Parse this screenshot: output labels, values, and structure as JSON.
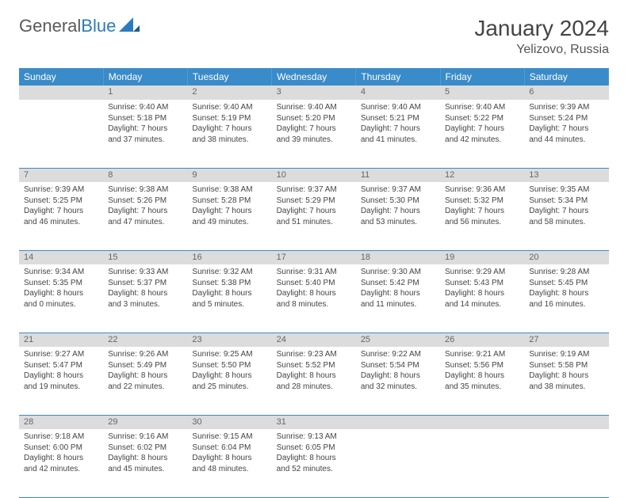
{
  "brand": {
    "part1": "General",
    "part2": "Blue"
  },
  "title": "January 2024",
  "location": "Yelizovo, Russia",
  "header_bg": "#3a8bc9",
  "daynum_bg": "#dcdcdc",
  "divider_color": "#3a8bc9",
  "text_color": "#444444",
  "day_headers": [
    "Sunday",
    "Monday",
    "Tuesday",
    "Wednesday",
    "Thursday",
    "Friday",
    "Saturday"
  ],
  "weeks": [
    {
      "nums": [
        "",
        "1",
        "2",
        "3",
        "4",
        "5",
        "6"
      ],
      "cells": [
        null,
        {
          "sunrise": "Sunrise: 9:40 AM",
          "sunset": "Sunset: 5:18 PM",
          "d1": "Daylight: 7 hours",
          "d2": "and 37 minutes."
        },
        {
          "sunrise": "Sunrise: 9:40 AM",
          "sunset": "Sunset: 5:19 PM",
          "d1": "Daylight: 7 hours",
          "d2": "and 38 minutes."
        },
        {
          "sunrise": "Sunrise: 9:40 AM",
          "sunset": "Sunset: 5:20 PM",
          "d1": "Daylight: 7 hours",
          "d2": "and 39 minutes."
        },
        {
          "sunrise": "Sunrise: 9:40 AM",
          "sunset": "Sunset: 5:21 PM",
          "d1": "Daylight: 7 hours",
          "d2": "and 41 minutes."
        },
        {
          "sunrise": "Sunrise: 9:40 AM",
          "sunset": "Sunset: 5:22 PM",
          "d1": "Daylight: 7 hours",
          "d2": "and 42 minutes."
        },
        {
          "sunrise": "Sunrise: 9:39 AM",
          "sunset": "Sunset: 5:24 PM",
          "d1": "Daylight: 7 hours",
          "d2": "and 44 minutes."
        }
      ]
    },
    {
      "nums": [
        "7",
        "8",
        "9",
        "10",
        "11",
        "12",
        "13"
      ],
      "cells": [
        {
          "sunrise": "Sunrise: 9:39 AM",
          "sunset": "Sunset: 5:25 PM",
          "d1": "Daylight: 7 hours",
          "d2": "and 46 minutes."
        },
        {
          "sunrise": "Sunrise: 9:38 AM",
          "sunset": "Sunset: 5:26 PM",
          "d1": "Daylight: 7 hours",
          "d2": "and 47 minutes."
        },
        {
          "sunrise": "Sunrise: 9:38 AM",
          "sunset": "Sunset: 5:28 PM",
          "d1": "Daylight: 7 hours",
          "d2": "and 49 minutes."
        },
        {
          "sunrise": "Sunrise: 9:37 AM",
          "sunset": "Sunset: 5:29 PM",
          "d1": "Daylight: 7 hours",
          "d2": "and 51 minutes."
        },
        {
          "sunrise": "Sunrise: 9:37 AM",
          "sunset": "Sunset: 5:30 PM",
          "d1": "Daylight: 7 hours",
          "d2": "and 53 minutes."
        },
        {
          "sunrise": "Sunrise: 9:36 AM",
          "sunset": "Sunset: 5:32 PM",
          "d1": "Daylight: 7 hours",
          "d2": "and 56 minutes."
        },
        {
          "sunrise": "Sunrise: 9:35 AM",
          "sunset": "Sunset: 5:34 PM",
          "d1": "Daylight: 7 hours",
          "d2": "and 58 minutes."
        }
      ]
    },
    {
      "nums": [
        "14",
        "15",
        "16",
        "17",
        "18",
        "19",
        "20"
      ],
      "cells": [
        {
          "sunrise": "Sunrise: 9:34 AM",
          "sunset": "Sunset: 5:35 PM",
          "d1": "Daylight: 8 hours",
          "d2": "and 0 minutes."
        },
        {
          "sunrise": "Sunrise: 9:33 AM",
          "sunset": "Sunset: 5:37 PM",
          "d1": "Daylight: 8 hours",
          "d2": "and 3 minutes."
        },
        {
          "sunrise": "Sunrise: 9:32 AM",
          "sunset": "Sunset: 5:38 PM",
          "d1": "Daylight: 8 hours",
          "d2": "and 5 minutes."
        },
        {
          "sunrise": "Sunrise: 9:31 AM",
          "sunset": "Sunset: 5:40 PM",
          "d1": "Daylight: 8 hours",
          "d2": "and 8 minutes."
        },
        {
          "sunrise": "Sunrise: 9:30 AM",
          "sunset": "Sunset: 5:42 PM",
          "d1": "Daylight: 8 hours",
          "d2": "and 11 minutes."
        },
        {
          "sunrise": "Sunrise: 9:29 AM",
          "sunset": "Sunset: 5:43 PM",
          "d1": "Daylight: 8 hours",
          "d2": "and 14 minutes."
        },
        {
          "sunrise": "Sunrise: 9:28 AM",
          "sunset": "Sunset: 5:45 PM",
          "d1": "Daylight: 8 hours",
          "d2": "and 16 minutes."
        }
      ]
    },
    {
      "nums": [
        "21",
        "22",
        "23",
        "24",
        "25",
        "26",
        "27"
      ],
      "cells": [
        {
          "sunrise": "Sunrise: 9:27 AM",
          "sunset": "Sunset: 5:47 PM",
          "d1": "Daylight: 8 hours",
          "d2": "and 19 minutes."
        },
        {
          "sunrise": "Sunrise: 9:26 AM",
          "sunset": "Sunset: 5:49 PM",
          "d1": "Daylight: 8 hours",
          "d2": "and 22 minutes."
        },
        {
          "sunrise": "Sunrise: 9:25 AM",
          "sunset": "Sunset: 5:50 PM",
          "d1": "Daylight: 8 hours",
          "d2": "and 25 minutes."
        },
        {
          "sunrise": "Sunrise: 9:23 AM",
          "sunset": "Sunset: 5:52 PM",
          "d1": "Daylight: 8 hours",
          "d2": "and 28 minutes."
        },
        {
          "sunrise": "Sunrise: 9:22 AM",
          "sunset": "Sunset: 5:54 PM",
          "d1": "Daylight: 8 hours",
          "d2": "and 32 minutes."
        },
        {
          "sunrise": "Sunrise: 9:21 AM",
          "sunset": "Sunset: 5:56 PM",
          "d1": "Daylight: 8 hours",
          "d2": "and 35 minutes."
        },
        {
          "sunrise": "Sunrise: 9:19 AM",
          "sunset": "Sunset: 5:58 PM",
          "d1": "Daylight: 8 hours",
          "d2": "and 38 minutes."
        }
      ]
    },
    {
      "nums": [
        "28",
        "29",
        "30",
        "31",
        "",
        "",
        ""
      ],
      "cells": [
        {
          "sunrise": "Sunrise: 9:18 AM",
          "sunset": "Sunset: 6:00 PM",
          "d1": "Daylight: 8 hours",
          "d2": "and 42 minutes."
        },
        {
          "sunrise": "Sunrise: 9:16 AM",
          "sunset": "Sunset: 6:02 PM",
          "d1": "Daylight: 8 hours",
          "d2": "and 45 minutes."
        },
        {
          "sunrise": "Sunrise: 9:15 AM",
          "sunset": "Sunset: 6:04 PM",
          "d1": "Daylight: 8 hours",
          "d2": "and 48 minutes."
        },
        {
          "sunrise": "Sunrise: 9:13 AM",
          "sunset": "Sunset: 6:05 PM",
          "d1": "Daylight: 8 hours",
          "d2": "and 52 minutes."
        },
        null,
        null,
        null
      ]
    }
  ]
}
